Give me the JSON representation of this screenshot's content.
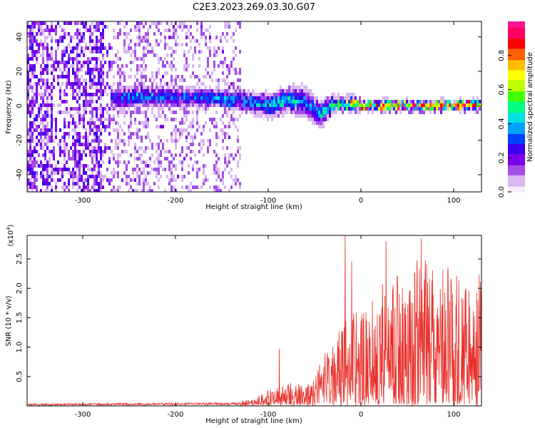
{
  "figure": {
    "title": "C2E3.2023.269.03.30.G07"
  },
  "colorbar": {
    "label": "Normalized spectral amplitude",
    "ticks": [
      "0.0",
      "0.2",
      "0.4",
      "0.6",
      "0.8"
    ],
    "range": [
      0,
      1
    ],
    "colormap": [
      "#f6ecfb",
      "#d9b8f1",
      "#a24ee8",
      "#7a00e8",
      "#3c00f0",
      "#0040ff",
      "#00a0ff",
      "#00e0e0",
      "#00ff80",
      "#40ff00",
      "#c0ff00",
      "#ffff00",
      "#ffc000",
      "#ff6000",
      "#ff0000",
      "#ff0060",
      "#ff1493"
    ]
  },
  "chart_data": [
    {
      "type": "heatmap",
      "xlabel": "Height of straight line (km)",
      "ylabel": "Frequency (Hz)",
      "xlim": [
        -360,
        130
      ],
      "ylim": [
        -50,
        49
      ],
      "xticks": [
        -300,
        -200,
        -100,
        0,
        100
      ],
      "yticks": [
        -40,
        -20,
        0,
        20,
        40
      ],
      "ridge": {
        "x": [
          -270,
          -250,
          -200,
          -150,
          -120,
          -100,
          -80,
          -60,
          -45,
          -30,
          -10,
          0,
          50,
          100,
          130
        ],
        "center_hz": [
          4,
          5,
          5,
          4,
          2,
          0,
          4,
          2,
          -5,
          1,
          1,
          0,
          0,
          0,
          0
        ],
        "half_width_hz": [
          4,
          4,
          4,
          4,
          4,
          5,
          5,
          6,
          5,
          3,
          3,
          2,
          2,
          2,
          2
        ],
        "amplitude": [
          0.3,
          0.35,
          0.3,
          0.35,
          0.35,
          0.4,
          0.45,
          0.3,
          0.4,
          0.5,
          0.7,
          0.8,
          0.9,
          0.9,
          0.9
        ]
      },
      "noise_extent_x": [
        -360,
        -130
      ]
    },
    {
      "type": "line",
      "xlabel": "Height of straight line (km)",
      "ylabel": "SNR (10 * v/v)",
      "multiplier": "(x10",
      "multiplier_exp": "4",
      "xlim": [
        -360,
        130
      ],
      "ylim": [
        0,
        2.9
      ],
      "xticks": [
        -300,
        -200,
        -100,
        0,
        100
      ],
      "yticks": [
        0.5,
        1.0,
        1.5,
        2.0,
        2.5
      ],
      "color": "#e8302a",
      "envelope": {
        "x": [
          -360,
          -130,
          -120,
          -100,
          -80,
          -60,
          -50,
          -40,
          -30,
          -20,
          -10,
          0,
          20,
          40,
          60,
          80,
          100,
          110,
          120,
          130
        ],
        "y": [
          0.03,
          0.05,
          0.08,
          0.2,
          0.3,
          0.3,
          0.4,
          0.7,
          0.9,
          1.1,
          1.3,
          1.3,
          1.7,
          1.8,
          2.0,
          2.0,
          1.9,
          1.8,
          1.7,
          1.8
        ]
      },
      "peaks": [
        {
          "x": -88,
          "y": 0.97
        },
        {
          "x": -17,
          "y": 2.95
        },
        {
          "x": -10,
          "y": 2.45
        },
        {
          "x": 27,
          "y": 2.8
        },
        {
          "x": 65,
          "y": 2.85
        },
        {
          "x": 120,
          "y": 0.1
        }
      ]
    }
  ]
}
